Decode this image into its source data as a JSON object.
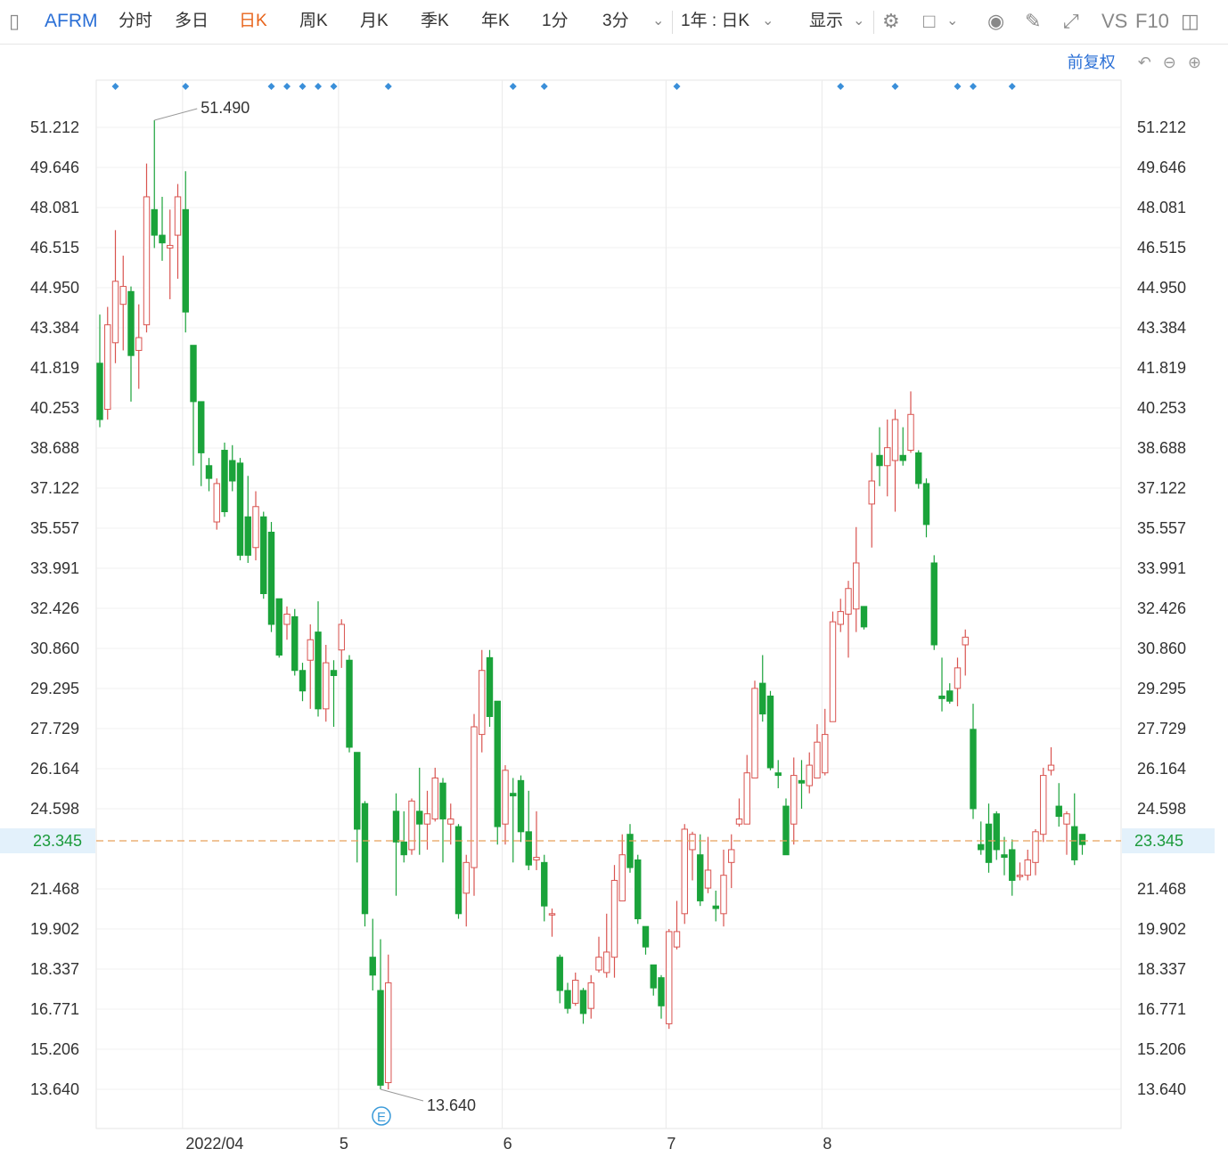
{
  "toolbar": {
    "symbol": "AFRM",
    "items": [
      "分时",
      "多日",
      "日K",
      "周K",
      "月K",
      "季K",
      "年K",
      "1分",
      "3分"
    ],
    "active_index": 2,
    "range_select": "1年 : 日K",
    "display": "显示",
    "vs": "VS",
    "f10": "F10"
  },
  "adjust": {
    "label": "前复权"
  },
  "colors": {
    "up": "#d9534f",
    "down": "#1aa33a",
    "current": "#e8a05a",
    "marker": "#3a8fd9"
  },
  "chart_data": {
    "type": "candlestick",
    "ylim": [
      13.64,
      51.212
    ],
    "y_ticks": [
      "51.212",
      "49.646",
      "48.081",
      "46.515",
      "44.950",
      "43.384",
      "41.819",
      "40.253",
      "38.688",
      "37.122",
      "35.557",
      "33.991",
      "32.426",
      "30.860",
      "29.295",
      "27.729",
      "26.164",
      "24.598",
      "21.468",
      "19.902",
      "18.337",
      "16.771",
      "15.206",
      "13.640"
    ],
    "current_price": "23.345",
    "high_label": "51.490",
    "low_label": "13.640",
    "earnings_marker": "E",
    "x_labels": [
      {
        "label": "2022/04",
        "index": 11
      },
      {
        "label": "5",
        "index": 31
      },
      {
        "label": "6",
        "index": 52
      },
      {
        "label": "7",
        "index": 73
      },
      {
        "label": "8",
        "index": 93
      }
    ],
    "candles": [
      [
        42.0,
        39.8,
        43.9,
        39.5
      ],
      [
        40.2,
        43.5,
        44.2,
        39.8
      ],
      [
        42.8,
        45.2,
        47.2,
        42.0
      ],
      [
        44.3,
        45.0,
        46.2,
        42.5
      ],
      [
        44.8,
        42.3,
        45.0,
        40.5
      ],
      [
        42.5,
        43.0,
        44.3,
        41.0
      ],
      [
        43.5,
        48.5,
        49.8,
        43.2
      ],
      [
        48.0,
        47.0,
        51.49,
        46.5
      ],
      [
        47.0,
        46.7,
        48.5,
        46.0
      ],
      [
        46.5,
        46.6,
        48.0,
        44.5
      ],
      [
        47.0,
        48.5,
        49.0,
        45.3
      ],
      [
        48.0,
        44.0,
        49.5,
        43.2
      ],
      [
        42.7,
        40.5,
        42.7,
        38.0
      ],
      [
        40.5,
        38.5,
        40.5,
        37.2
      ],
      [
        38.0,
        37.5,
        38.3,
        37.0
      ],
      [
        35.8,
        37.3,
        37.5,
        35.5
      ],
      [
        38.6,
        36.2,
        38.9,
        36.0
      ],
      [
        38.2,
        37.4,
        38.8,
        37.0
      ],
      [
        38.1,
        34.5,
        38.3,
        34.3
      ],
      [
        36.0,
        34.5,
        37.6,
        34.2
      ],
      [
        34.8,
        36.4,
        37.0,
        34.3
      ],
      [
        36.0,
        33.0,
        36.2,
        32.8
      ],
      [
        35.4,
        31.8,
        35.8,
        31.5
      ],
      [
        32.8,
        30.6,
        32.8,
        30.5
      ],
      [
        31.8,
        32.2,
        32.5,
        31.2
      ],
      [
        32.1,
        30.0,
        32.4,
        29.8
      ],
      [
        30.0,
        29.2,
        30.3,
        28.8
      ],
      [
        30.4,
        31.2,
        31.8,
        28.5
      ],
      [
        31.5,
        28.5,
        32.7,
        28.2
      ],
      [
        28.5,
        30.3,
        31.0,
        28.0
      ],
      [
        30.0,
        29.8,
        30.4,
        27.8
      ],
      [
        30.8,
        31.8,
        32.0,
        30.1
      ],
      [
        30.4,
        27.0,
        30.6,
        26.8
      ],
      [
        26.8,
        23.8,
        26.8,
        22.5
      ],
      [
        24.8,
        20.5,
        24.9,
        20.0
      ],
      [
        18.8,
        18.1,
        20.3,
        17.5
      ],
      [
        17.5,
        13.8,
        19.5,
        13.64
      ],
      [
        13.9,
        17.8,
        18.9,
        13.64
      ],
      [
        24.5,
        23.3,
        25.2,
        21.2
      ],
      [
        23.3,
        22.8,
        24.5,
        22.5
      ],
      [
        23.0,
        24.9,
        25.0,
        22.8
      ],
      [
        24.5,
        24.0,
        26.2,
        22.8
      ],
      [
        24.0,
        24.4,
        25.3,
        23.0
      ],
      [
        24.2,
        25.8,
        26.2,
        24.1
      ],
      [
        25.6,
        24.2,
        25.8,
        22.5
      ],
      [
        24.0,
        24.2,
        24.8,
        23.2
      ],
      [
        23.9,
        20.5,
        24.0,
        20.3
      ],
      [
        21.3,
        22.5,
        22.8,
        20.0
      ],
      [
        22.3,
        27.8,
        28.3,
        21.2
      ],
      [
        27.5,
        30.0,
        30.8,
        26.8
      ],
      [
        30.5,
        28.2,
        30.8,
        27.8
      ],
      [
        28.8,
        23.9,
        28.8,
        23.2
      ],
      [
        24.0,
        26.1,
        26.3,
        23.2
      ],
      [
        25.2,
        25.1,
        25.8,
        22.5
      ],
      [
        25.7,
        23.7,
        25.9,
        23.3
      ],
      [
        23.7,
        22.4,
        25.3,
        22.2
      ],
      [
        22.6,
        22.7,
        24.5,
        22.2
      ],
      [
        22.5,
        20.8,
        22.8,
        20.2
      ],
      [
        20.5,
        20.5,
        20.7,
        19.6
      ],
      [
        18.8,
        17.5,
        18.9,
        17.0
      ],
      [
        17.5,
        16.8,
        17.8,
        16.6
      ],
      [
        17.0,
        17.9,
        18.2,
        16.9
      ],
      [
        17.5,
        16.6,
        17.6,
        16.2
      ],
      [
        16.8,
        17.8,
        18.1,
        16.4
      ],
      [
        18.3,
        18.8,
        19.6,
        18.2
      ],
      [
        18.2,
        19.0,
        20.5,
        18.0
      ],
      [
        18.8,
        21.8,
        22.4,
        18.0
      ],
      [
        21.0,
        22.8,
        23.6,
        21.0
      ],
      [
        23.6,
        22.3,
        24.0,
        22.1
      ],
      [
        22.6,
        20.3,
        22.8,
        20.1
      ],
      [
        20.0,
        19.2,
        20.0,
        18.9
      ],
      [
        18.5,
        17.6,
        18.5,
        17.3
      ],
      [
        18.0,
        16.9,
        18.1,
        16.4
      ],
      [
        16.2,
        19.8,
        19.9,
        16.0
      ],
      [
        19.2,
        19.8,
        21.0,
        19.1
      ],
      [
        20.5,
        23.8,
        24.0,
        20.1
      ],
      [
        23.0,
        23.6,
        23.7,
        21.8
      ],
      [
        22.8,
        21.0,
        23.6,
        20.8
      ],
      [
        21.5,
        22.2,
        23.5,
        21.3
      ],
      [
        20.8,
        20.7,
        21.4,
        20.2
      ],
      [
        20.5,
        22.0,
        23.0,
        20.0
      ],
      [
        22.5,
        23.0,
        23.6,
        21.5
      ],
      [
        24.0,
        24.2,
        25.0,
        23.9
      ],
      [
        24.0,
        26.0,
        26.7,
        24.0
      ],
      [
        25.8,
        29.3,
        29.6,
        25.8
      ],
      [
        29.5,
        28.3,
        30.6,
        28.0
      ],
      [
        29.0,
        26.2,
        29.2,
        26.1
      ],
      [
        26.0,
        25.9,
        26.5,
        25.4
      ],
      [
        24.7,
        22.8,
        25.0,
        22.8
      ],
      [
        24.0,
        25.9,
        26.6,
        23.2
      ],
      [
        25.7,
        25.6,
        26.5,
        24.6
      ],
      [
        25.5,
        26.3,
        26.8,
        25.2
      ],
      [
        25.8,
        27.2,
        27.9,
        26.2
      ],
      [
        26.0,
        27.5,
        28.5,
        25.9
      ],
      [
        28.0,
        31.9,
        32.3,
        28.0
      ],
      [
        31.8,
        32.3,
        32.8,
        31.5
      ],
      [
        32.2,
        33.2,
        33.5,
        30.5
      ],
      [
        32.4,
        34.2,
        35.6,
        31.5
      ],
      [
        32.5,
        31.7,
        32.5,
        31.6
      ],
      [
        36.5,
        37.4,
        38.5,
        34.8
      ],
      [
        38.4,
        38.0,
        39.5,
        37.2
      ],
      [
        38.0,
        38.7,
        39.8,
        36.8
      ],
      [
        38.2,
        39.8,
        40.2,
        36.2
      ],
      [
        38.4,
        38.2,
        39.5,
        38.0
      ],
      [
        38.6,
        40.0,
        40.9,
        38.5
      ],
      [
        38.5,
        37.3,
        38.6,
        37.1
      ],
      [
        37.3,
        35.7,
        37.5,
        35.2
      ],
      [
        34.2,
        31.0,
        34.5,
        30.8
      ],
      [
        29.0,
        28.9,
        30.5,
        28.4
      ],
      [
        29.2,
        28.8,
        29.5,
        28.7
      ],
      [
        29.3,
        30.1,
        30.5,
        28.6
      ],
      [
        31.0,
        31.3,
        31.6,
        29.8
      ],
      [
        27.7,
        24.6,
        28.7,
        24.2
      ],
      [
        23.2,
        23.0,
        24.1,
        22.8
      ],
      [
        24.0,
        22.5,
        24.8,
        22.1
      ],
      [
        24.4,
        23.0,
        24.5,
        22.6
      ],
      [
        22.8,
        22.7,
        23.5,
        22.0
      ],
      [
        23.0,
        21.8,
        23.4,
        21.2
      ],
      [
        22.0,
        22.0,
        22.5,
        21.8
      ],
      [
        22.0,
        22.6,
        23.0,
        21.8
      ],
      [
        22.5,
        23.7,
        23.8,
        22.0
      ],
      [
        23.6,
        25.9,
        26.2,
        23.3
      ],
      [
        26.1,
        26.3,
        27.0,
        25.9
      ],
      [
        24.7,
        24.3,
        25.6,
        23.9
      ],
      [
        24.0,
        24.4,
        24.5,
        22.8
      ],
      [
        23.9,
        22.6,
        25.2,
        22.4
      ],
      [
        23.6,
        23.2,
        23.6,
        22.8
      ]
    ]
  }
}
